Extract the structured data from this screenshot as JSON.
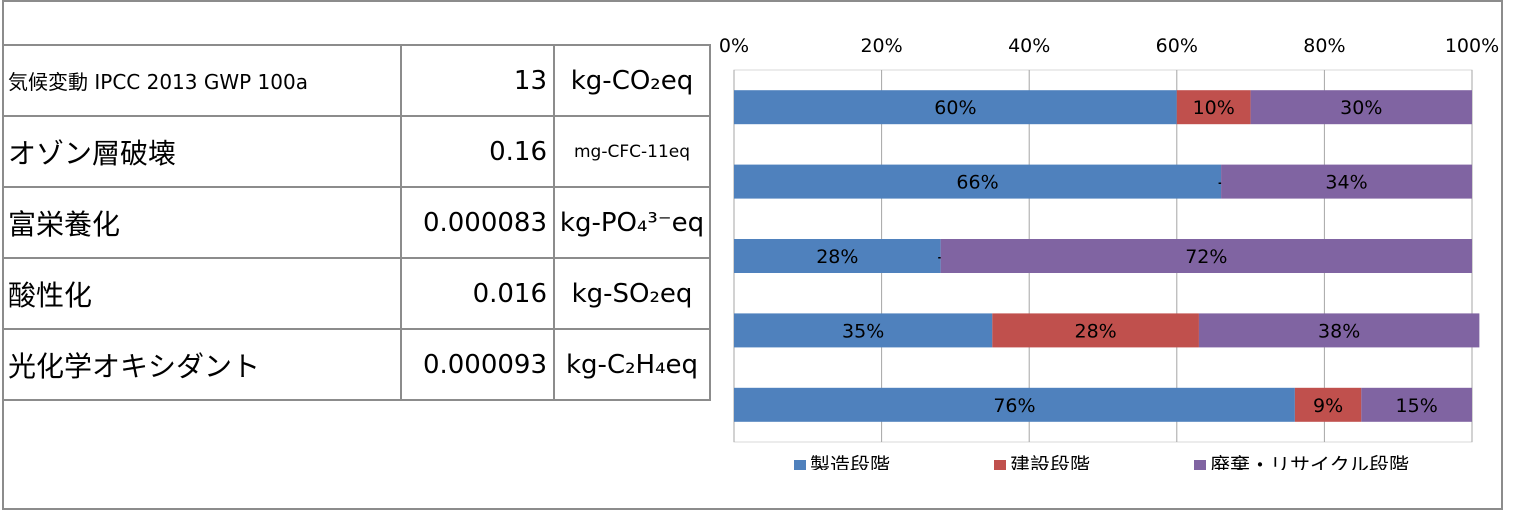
{
  "table": {
    "rows": [
      {
        "indicator": "気候変動 IPCC 2013 GWP 100a",
        "value": "13",
        "unit": "kg-CO₂eq"
      },
      {
        "indicator": "オゾン層破壊",
        "value": "0.16",
        "unit": "mg-CFC-11eq"
      },
      {
        "indicator": "富栄養化",
        "value": "0.000083",
        "unit": "kg-PO₄³⁻eq"
      },
      {
        "indicator": "酸性化",
        "value": "0.016",
        "unit": "kg-SO₂eq"
      },
      {
        "indicator": "光化学オキシダント",
        "value": "0.000093",
        "unit": "kg-C₂H₄eq"
      }
    ]
  },
  "chart_data": {
    "type": "bar",
    "orientation": "horizontal",
    "stacked": "percent",
    "x_tick_labels": [
      "0%",
      "20%",
      "40%",
      "60%",
      "80%",
      "100%"
    ],
    "xlim": [
      0,
      100
    ],
    "grid": "vertical",
    "legend_position": "bottom",
    "categories": [
      "気候変動 IPCC 2013 GWP 100a",
      "オゾン層破壊",
      "富栄養化",
      "酸性化",
      "光化学オキシダント"
    ],
    "series": [
      {
        "name": "製造段階",
        "color": "#4f81bd",
        "values": [
          60,
          66,
          28,
          35,
          76
        ],
        "labels": [
          "60%",
          "66%",
          "28%",
          "35%",
          "76%"
        ]
      },
      {
        "name": "建設段階",
        "color": "#c0504d",
        "values": [
          10,
          0,
          0,
          28,
          9
        ],
        "labels": [
          "10%",
          "-",
          "-",
          "28%",
          "9%"
        ]
      },
      {
        "name": "廃棄・リサイクル段階",
        "color": "#8064a2",
        "values": [
          30,
          34,
          72,
          38,
          15
        ],
        "labels": [
          "30%",
          "34%",
          "72%",
          "38%",
          "15%"
        ]
      }
    ]
  }
}
